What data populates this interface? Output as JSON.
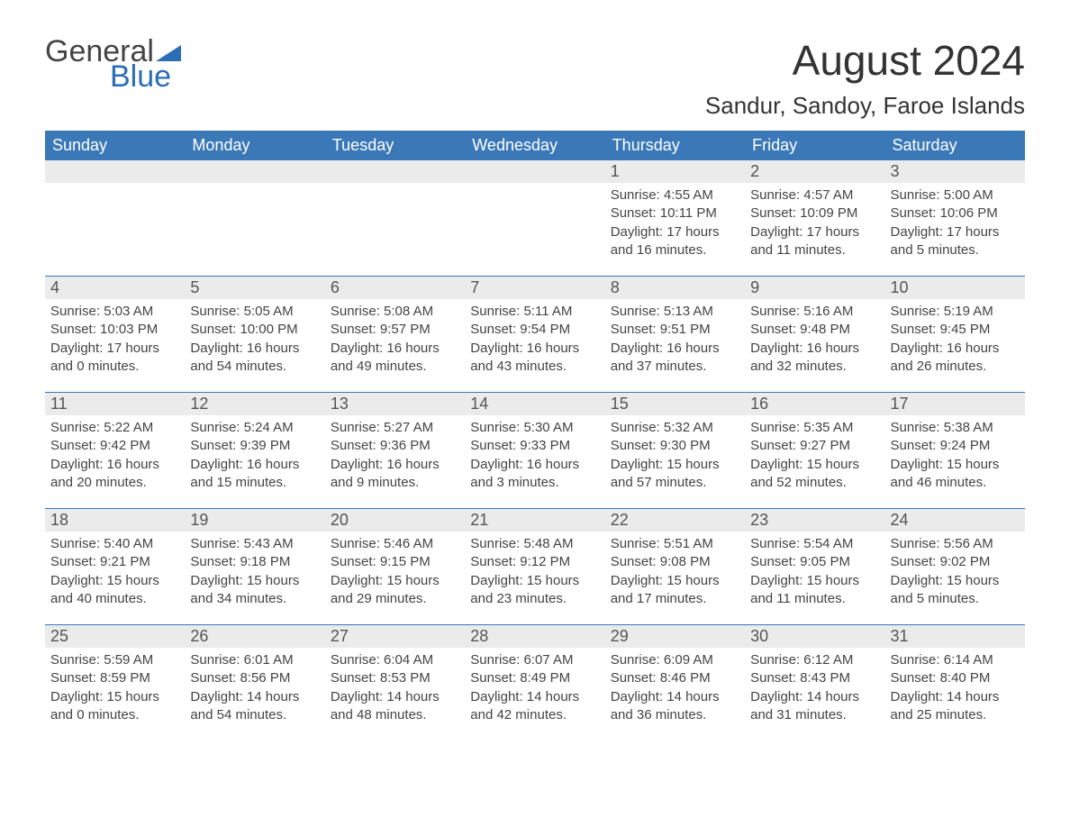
{
  "logo": {
    "text1": "General",
    "text2": "Blue",
    "accent_color": "#2c6eb5"
  },
  "title": "August 2024",
  "location": "Sandur, Sandoy, Faroe Islands",
  "header_bg": "#3b78b8",
  "day_num_bg": "#ebebeb",
  "day_border": "#3b78b8",
  "text_color": "#444444",
  "days_of_week": [
    "Sunday",
    "Monday",
    "Tuesday",
    "Wednesday",
    "Thursday",
    "Friday",
    "Saturday"
  ],
  "weeks": [
    [
      {
        "n": "",
        "sr": "",
        "ss": "",
        "dl": ""
      },
      {
        "n": "",
        "sr": "",
        "ss": "",
        "dl": ""
      },
      {
        "n": "",
        "sr": "",
        "ss": "",
        "dl": ""
      },
      {
        "n": "",
        "sr": "",
        "ss": "",
        "dl": ""
      },
      {
        "n": "1",
        "sr": "Sunrise: 4:55 AM",
        "ss": "Sunset: 10:11 PM",
        "dl": "Daylight: 17 hours and 16 minutes."
      },
      {
        "n": "2",
        "sr": "Sunrise: 4:57 AM",
        "ss": "Sunset: 10:09 PM",
        "dl": "Daylight: 17 hours and 11 minutes."
      },
      {
        "n": "3",
        "sr": "Sunrise: 5:00 AM",
        "ss": "Sunset: 10:06 PM",
        "dl": "Daylight: 17 hours and 5 minutes."
      }
    ],
    [
      {
        "n": "4",
        "sr": "Sunrise: 5:03 AM",
        "ss": "Sunset: 10:03 PM",
        "dl": "Daylight: 17 hours and 0 minutes."
      },
      {
        "n": "5",
        "sr": "Sunrise: 5:05 AM",
        "ss": "Sunset: 10:00 PM",
        "dl": "Daylight: 16 hours and 54 minutes."
      },
      {
        "n": "6",
        "sr": "Sunrise: 5:08 AM",
        "ss": "Sunset: 9:57 PM",
        "dl": "Daylight: 16 hours and 49 minutes."
      },
      {
        "n": "7",
        "sr": "Sunrise: 5:11 AM",
        "ss": "Sunset: 9:54 PM",
        "dl": "Daylight: 16 hours and 43 minutes."
      },
      {
        "n": "8",
        "sr": "Sunrise: 5:13 AM",
        "ss": "Sunset: 9:51 PM",
        "dl": "Daylight: 16 hours and 37 minutes."
      },
      {
        "n": "9",
        "sr": "Sunrise: 5:16 AM",
        "ss": "Sunset: 9:48 PM",
        "dl": "Daylight: 16 hours and 32 minutes."
      },
      {
        "n": "10",
        "sr": "Sunrise: 5:19 AM",
        "ss": "Sunset: 9:45 PM",
        "dl": "Daylight: 16 hours and 26 minutes."
      }
    ],
    [
      {
        "n": "11",
        "sr": "Sunrise: 5:22 AM",
        "ss": "Sunset: 9:42 PM",
        "dl": "Daylight: 16 hours and 20 minutes."
      },
      {
        "n": "12",
        "sr": "Sunrise: 5:24 AM",
        "ss": "Sunset: 9:39 PM",
        "dl": "Daylight: 16 hours and 15 minutes."
      },
      {
        "n": "13",
        "sr": "Sunrise: 5:27 AM",
        "ss": "Sunset: 9:36 PM",
        "dl": "Daylight: 16 hours and 9 minutes."
      },
      {
        "n": "14",
        "sr": "Sunrise: 5:30 AM",
        "ss": "Sunset: 9:33 PM",
        "dl": "Daylight: 16 hours and 3 minutes."
      },
      {
        "n": "15",
        "sr": "Sunrise: 5:32 AM",
        "ss": "Sunset: 9:30 PM",
        "dl": "Daylight: 15 hours and 57 minutes."
      },
      {
        "n": "16",
        "sr": "Sunrise: 5:35 AM",
        "ss": "Sunset: 9:27 PM",
        "dl": "Daylight: 15 hours and 52 minutes."
      },
      {
        "n": "17",
        "sr": "Sunrise: 5:38 AM",
        "ss": "Sunset: 9:24 PM",
        "dl": "Daylight: 15 hours and 46 minutes."
      }
    ],
    [
      {
        "n": "18",
        "sr": "Sunrise: 5:40 AM",
        "ss": "Sunset: 9:21 PM",
        "dl": "Daylight: 15 hours and 40 minutes."
      },
      {
        "n": "19",
        "sr": "Sunrise: 5:43 AM",
        "ss": "Sunset: 9:18 PM",
        "dl": "Daylight: 15 hours and 34 minutes."
      },
      {
        "n": "20",
        "sr": "Sunrise: 5:46 AM",
        "ss": "Sunset: 9:15 PM",
        "dl": "Daylight: 15 hours and 29 minutes."
      },
      {
        "n": "21",
        "sr": "Sunrise: 5:48 AM",
        "ss": "Sunset: 9:12 PM",
        "dl": "Daylight: 15 hours and 23 minutes."
      },
      {
        "n": "22",
        "sr": "Sunrise: 5:51 AM",
        "ss": "Sunset: 9:08 PM",
        "dl": "Daylight: 15 hours and 17 minutes."
      },
      {
        "n": "23",
        "sr": "Sunrise: 5:54 AM",
        "ss": "Sunset: 9:05 PM",
        "dl": "Daylight: 15 hours and 11 minutes."
      },
      {
        "n": "24",
        "sr": "Sunrise: 5:56 AM",
        "ss": "Sunset: 9:02 PM",
        "dl": "Daylight: 15 hours and 5 minutes."
      }
    ],
    [
      {
        "n": "25",
        "sr": "Sunrise: 5:59 AM",
        "ss": "Sunset: 8:59 PM",
        "dl": "Daylight: 15 hours and 0 minutes."
      },
      {
        "n": "26",
        "sr": "Sunrise: 6:01 AM",
        "ss": "Sunset: 8:56 PM",
        "dl": "Daylight: 14 hours and 54 minutes."
      },
      {
        "n": "27",
        "sr": "Sunrise: 6:04 AM",
        "ss": "Sunset: 8:53 PM",
        "dl": "Daylight: 14 hours and 48 minutes."
      },
      {
        "n": "28",
        "sr": "Sunrise: 6:07 AM",
        "ss": "Sunset: 8:49 PM",
        "dl": "Daylight: 14 hours and 42 minutes."
      },
      {
        "n": "29",
        "sr": "Sunrise: 6:09 AM",
        "ss": "Sunset: 8:46 PM",
        "dl": "Daylight: 14 hours and 36 minutes."
      },
      {
        "n": "30",
        "sr": "Sunrise: 6:12 AM",
        "ss": "Sunset: 8:43 PM",
        "dl": "Daylight: 14 hours and 31 minutes."
      },
      {
        "n": "31",
        "sr": "Sunrise: 6:14 AM",
        "ss": "Sunset: 8:40 PM",
        "dl": "Daylight: 14 hours and 25 minutes."
      }
    ]
  ]
}
